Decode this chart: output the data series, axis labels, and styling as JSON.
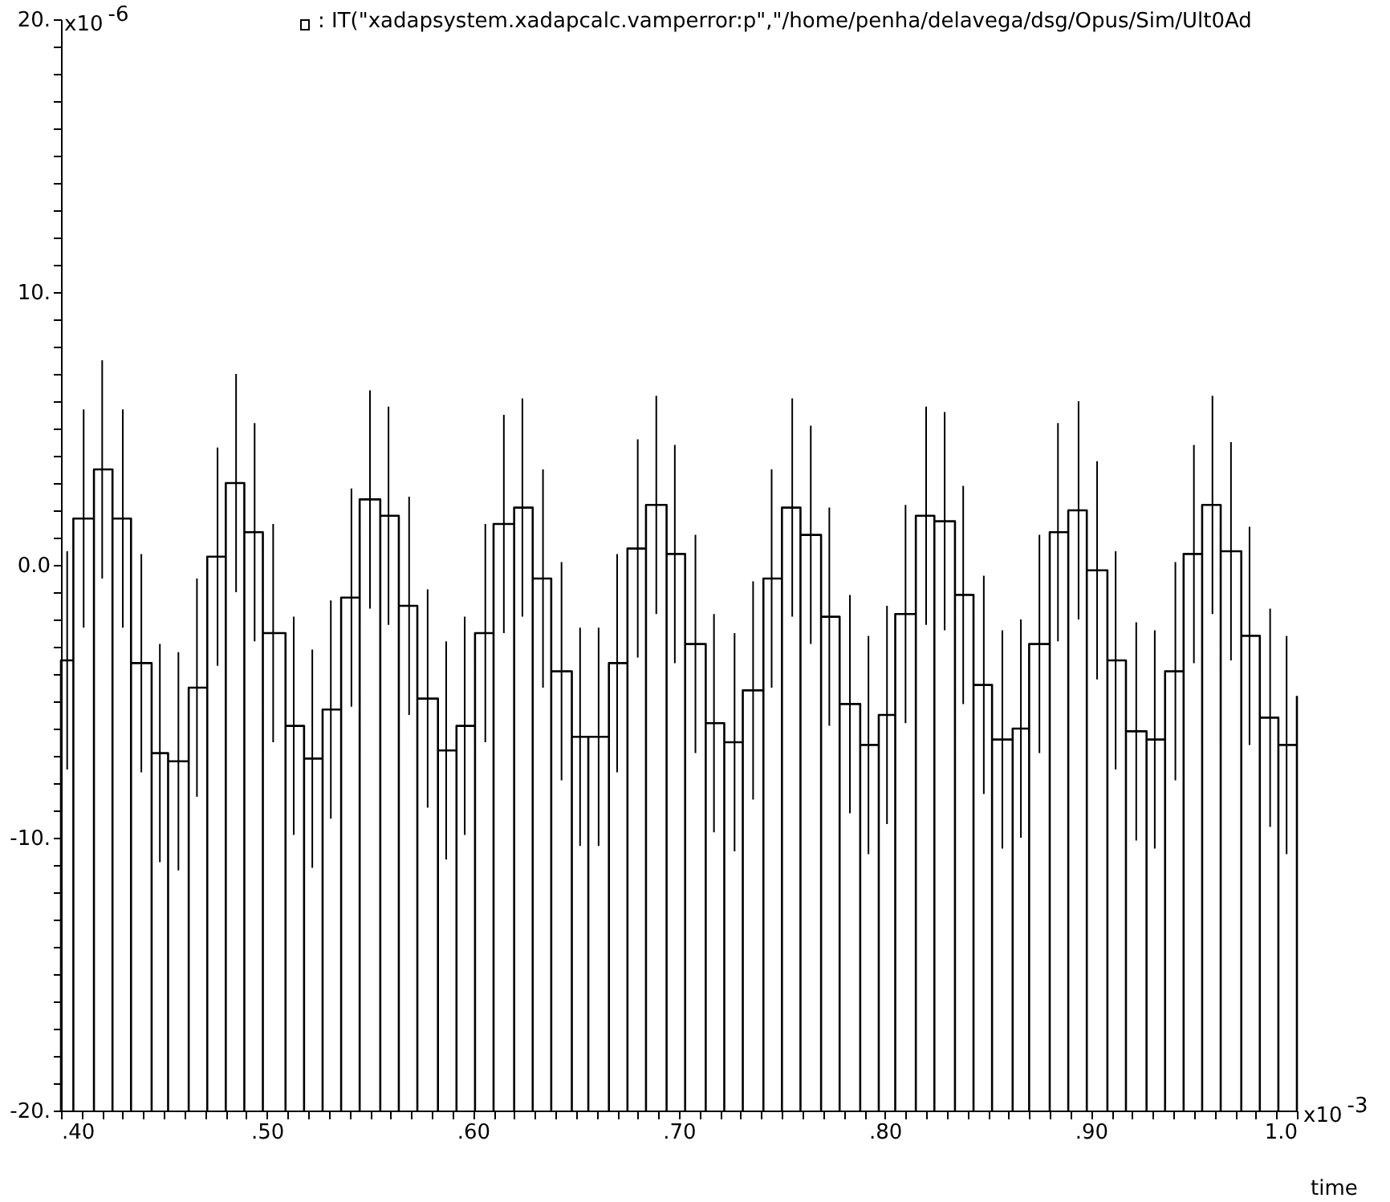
{
  "chart_data": {
    "type": "line",
    "title": ": IT(\"xadapsystem.xadapcalc.vamperror:p\",\"/home/penha/delavega/dsg/Opus/Sim/Ult0Ad",
    "xlabel": "time",
    "annotations": [
      "x10$^{-6}$",
      "x10$^{-3}$"
    ],
    "xlim": [
      0.4,
      1.0
    ],
    "xticks": [
      {
        "value": 0.4,
        "label": ".40"
      },
      {
        "value": 0.41,
        "label": null
      },
      {
        "value": 0.42,
        "label": null
      },
      {
        "value": 0.43,
        "label": null
      },
      {
        "value": 0.44,
        "label": null
      },
      {
        "value": 0.45,
        "label": null
      },
      {
        "value": 0.46,
        "label": null
      },
      {
        "value": 0.47,
        "label": null
      },
      {
        "value": 0.48,
        "label": null
      },
      {
        "value": 0.49,
        "label": null
      },
      {
        "value": 0.5,
        "label": ".50"
      },
      {
        "value": 0.51,
        "label": null
      },
      {
        "value": 0.52,
        "label": null
      },
      {
        "value": 0.53,
        "label": null
      },
      {
        "value": 0.54,
        "label": null
      },
      {
        "value": 0.55,
        "label": null
      },
      {
        "value": 0.56,
        "label": null
      },
      {
        "value": 0.57,
        "label": null
      },
      {
        "value": 0.58,
        "label": null
      },
      {
        "value": 0.59,
        "label": null
      },
      {
        "value": 0.6,
        "label": ".60"
      },
      {
        "value": 0.61,
        "label": null
      },
      {
        "value": 0.62,
        "label": null
      },
      {
        "value": 0.63,
        "label": null
      },
      {
        "value": 0.64,
        "label": null
      },
      {
        "value": 0.65,
        "label": null
      },
      {
        "value": 0.66,
        "label": null
      },
      {
        "value": 0.67,
        "label": null
      },
      {
        "value": 0.68,
        "label": null
      },
      {
        "value": 0.69,
        "label": null
      },
      {
        "value": 0.7,
        "label": ".70"
      },
      {
        "value": 0.71,
        "label": null
      },
      {
        "value": 0.72,
        "label": null
      },
      {
        "value": 0.73,
        "label": null
      },
      {
        "value": 0.74,
        "label": null
      },
      {
        "value": 0.75,
        "label": null
      },
      {
        "value": 0.76,
        "label": null
      },
      {
        "value": 0.77,
        "label": null
      },
      {
        "value": 0.78,
        "label": null
      },
      {
        "value": 0.79,
        "label": null
      },
      {
        "value": 0.8,
        "label": ".80"
      },
      {
        "value": 0.81,
        "label": null
      },
      {
        "value": 0.82,
        "label": null
      },
      {
        "value": 0.83,
        "label": null
      },
      {
        "value": 0.84,
        "label": null
      },
      {
        "value": 0.85,
        "label": null
      },
      {
        "value": 0.86,
        "label": null
      },
      {
        "value": 0.87,
        "label": null
      },
      {
        "value": 0.88,
        "label": null
      },
      {
        "value": 0.89,
        "label": null
      },
      {
        "value": 0.9,
        "label": ".90"
      },
      {
        "value": 0.91,
        "label": null
      },
      {
        "value": 0.92,
        "label": null
      },
      {
        "value": 0.93,
        "label": null
      },
      {
        "value": 0.94,
        "label": null
      },
      {
        "value": 0.95,
        "label": null
      },
      {
        "value": 0.96,
        "label": null
      },
      {
        "value": 0.97,
        "label": null
      },
      {
        "value": 0.98,
        "label": null
      },
      {
        "value": 0.99,
        "label": null
      },
      {
        "value": 1.0,
        "label": "1.0"
      }
    ],
    "ylim": [
      -20,
      20
    ],
    "yticks": [
      {
        "value": -20,
        "label": "-20."
      },
      {
        "value": -19,
        "label": null
      },
      {
        "value": -18,
        "label": null
      },
      {
        "value": -17,
        "label": null
      },
      {
        "value": -16,
        "label": null
      },
      {
        "value": -15,
        "label": null
      },
      {
        "value": -14,
        "label": null
      },
      {
        "value": -13,
        "label": null
      },
      {
        "value": -12,
        "label": null
      },
      {
        "value": -11,
        "label": null
      },
      {
        "value": -10,
        "label": "-10."
      },
      {
        "value": -9,
        "label": null
      },
      {
        "value": -8,
        "label": null
      },
      {
        "value": -7,
        "label": null
      },
      {
        "value": -6,
        "label": null
      },
      {
        "value": -5,
        "label": null
      },
      {
        "value": -4,
        "label": null
      },
      {
        "value": -3,
        "label": null
      },
      {
        "value": -2,
        "label": null
      },
      {
        "value": -1,
        "label": null
      },
      {
        "value": 0,
        "label": "0.0"
      },
      {
        "value": 1,
        "label": null
      },
      {
        "value": 2,
        "label": null
      },
      {
        "value": 3,
        "label": null
      },
      {
        "value": 4,
        "label": null
      },
      {
        "value": 5,
        "label": null
      },
      {
        "value": 6,
        "label": null
      },
      {
        "value": 7,
        "label": null
      },
      {
        "value": 8,
        "label": null
      },
      {
        "value": 9,
        "label": null
      },
      {
        "value": 10,
        "label": "10."
      },
      {
        "value": 11,
        "label": null
      },
      {
        "value": 12,
        "label": null
      },
      {
        "value": 13,
        "label": null
      },
      {
        "value": 14,
        "label": null
      },
      {
        "value": 15,
        "label": null
      },
      {
        "value": 16,
        "label": null
      },
      {
        "value": 17,
        "label": null
      },
      {
        "value": 18,
        "label": null
      },
      {
        "value": 19,
        "label": null
      },
      {
        "value": 20,
        "label": "20."
      }
    ],
    "marker": "none",
    "series": [
      {
        "color": "#000000",
        "x": [
          0.4,
          0.4,
          0.403,
          0.406,
          0.406,
          0.406,
          0.411,
          0.416,
          0.416,
          0.416,
          0.42,
          0.425,
          0.425,
          0.425,
          0.43,
          0.434,
          0.434,
          0.434,
          0.439,
          0.444,
          0.444,
          0.444,
          0.448,
          0.452,
          0.452,
          0.452,
          0.457,
          0.462,
          0.462,
          0.462,
          0.466,
          0.471,
          0.471,
          0.471,
          0.476,
          0.48,
          0.48,
          0.48,
          0.485,
          0.489,
          0.489,
          0.489,
          0.494,
          0.498,
          0.498,
          0.498,
          0.503,
          0.509,
          0.509,
          0.509,
          0.513,
          0.518,
          0.518,
          0.518,
          0.522,
          0.527,
          0.527,
          0.527,
          0.531,
          0.536,
          0.536,
          0.536,
          0.541,
          0.545,
          0.545,
          0.545,
          0.55,
          0.555,
          0.555,
          0.555,
          0.559,
          0.564,
          0.564,
          0.564,
          0.569,
          0.573,
          0.573,
          0.573,
          0.578,
          0.583,
          0.583,
          0.583,
          0.587,
          0.592,
          0.592,
          0.592,
          0.596,
          0.601,
          0.601,
          0.601,
          0.606,
          0.61,
          0.61,
          0.61,
          0.615,
          0.62,
          0.62,
          0.62,
          0.624,
          0.629,
          0.629,
          0.629,
          0.634,
          0.638,
          0.638,
          0.638,
          0.643,
          0.648,
          0.648,
          0.648,
          0.652,
          0.656,
          0.656,
          0.656,
          0.661,
          0.666,
          0.666,
          0.666,
          0.67,
          0.675,
          0.675,
          0.675,
          0.68,
          0.684,
          0.684,
          0.684,
          0.689,
          0.694,
          0.694,
          0.694,
          0.698,
          0.703,
          0.703,
          0.703,
          0.708,
          0.713,
          0.713,
          0.713,
          0.717,
          0.722,
          0.722,
          0.722,
          0.727,
          0.731,
          0.731,
          0.731,
          0.736,
          0.741,
          0.741,
          0.741,
          0.745,
          0.75,
          0.75,
          0.75,
          0.755,
          0.759,
          0.759,
          0.759,
          0.764,
          0.769,
          0.769,
          0.769,
          0.773,
          0.778,
          0.778,
          0.778,
          0.783,
          0.788,
          0.788,
          0.788,
          0.792,
          0.797,
          0.797,
          0.797,
          0.801,
          0.805,
          0.805,
          0.805,
          0.81,
          0.815,
          0.815,
          0.815,
          0.82,
          0.824,
          0.824,
          0.824,
          0.829,
          0.834,
          0.834,
          0.834,
          0.838,
          0.843,
          0.843,
          0.843,
          0.848,
          0.852,
          0.852,
          0.852,
          0.857,
          0.862,
          0.862,
          0.862,
          0.866,
          0.87,
          0.87,
          0.87,
          0.875,
          0.88,
          0.88,
          0.88,
          0.884,
          0.889,
          0.889,
          0.889,
          0.894,
          0.898,
          0.898,
          0.898,
          0.903,
          0.908,
          0.908,
          0.908,
          0.912,
          0.917,
          0.917,
          0.917,
          0.922,
          0.927,
          0.927,
          0.927,
          0.931,
          0.936,
          0.936,
          0.936,
          0.941,
          0.945,
          0.945,
          0.945,
          0.95,
          0.954,
          0.954,
          0.954,
          0.959,
          0.963,
          0.963,
          0.963,
          0.968,
          0.973,
          0.973,
          0.973,
          0.977,
          0.982,
          0.982,
          0.982,
          0.987,
          0.991,
          0.991,
          0.991,
          0.995,
          1.0,
          1.0,
          1.0
        ],
        "values": [
          -20,
          -3.5,
          -3.5,
          -3.5,
          -20,
          1.7,
          1.7,
          1.7,
          -20,
          3.5,
          3.5,
          3.5,
          -20,
          1.7,
          1.7,
          1.7,
          -20,
          -3.6,
          -3.6,
          -3.6,
          -20,
          -6.9,
          -6.9,
          -6.9,
          -20,
          -7.2,
          -7.2,
          -7.2,
          -20,
          -4.5,
          -4.5,
          -4.5,
          -20,
          0.3,
          0.3,
          0.3,
          -20,
          3.0,
          3.0,
          3.0,
          -20,
          1.2,
          1.2,
          1.2,
          -20,
          -2.5,
          -2.5,
          -2.5,
          -20,
          -5.9,
          -5.9,
          -5.9,
          -20,
          -7.1,
          -7.1,
          -7.1,
          -20,
          -5.3,
          -5.3,
          -5.3,
          -20,
          -1.2,
          -1.2,
          -1.2,
          -20,
          2.4,
          2.4,
          2.4,
          -20,
          1.8,
          1.8,
          1.8,
          -20,
          -1.5,
          -1.5,
          -1.5,
          -20,
          -4.9,
          -4.9,
          -4.9,
          -20,
          -6.8,
          -6.8,
          -6.8,
          -20,
          -5.9,
          -5.9,
          -5.9,
          -20,
          -2.5,
          -2.5,
          -2.5,
          -20,
          1.5,
          1.5,
          1.5,
          -20,
          2.1,
          2.1,
          2.1,
          -20,
          -0.5,
          -0.5,
          -0.5,
          -20,
          -3.9,
          -3.9,
          -3.9,
          -20,
          -6.3,
          -6.3,
          -6.3,
          -20,
          -6.3,
          -6.3,
          -6.3,
          -20,
          -3.6,
          -3.6,
          -3.6,
          -20,
          0.6,
          0.6,
          0.6,
          -20,
          2.2,
          2.2,
          2.2,
          -20,
          0.4,
          0.4,
          0.4,
          -20,
          -2.9,
          -2.9,
          -2.9,
          -20,
          -5.8,
          -5.8,
          -5.8,
          -20,
          -6.5,
          -6.5,
          -6.5,
          -20,
          -4.6,
          -4.6,
          -4.6,
          -20,
          -0.5,
          -0.5,
          -0.5,
          -20,
          2.1,
          2.1,
          2.1,
          -20,
          1.1,
          1.1,
          1.1,
          -20,
          -1.9,
          -1.9,
          -1.9,
          -20,
          -5.1,
          -5.1,
          -5.1,
          -20,
          -6.6,
          -6.6,
          -6.6,
          -20,
          -5.5,
          -5.5,
          -5.5,
          -20,
          -1.8,
          -1.8,
          -1.8,
          -20,
          1.8,
          1.8,
          1.8,
          -20,
          1.6,
          1.6,
          1.6,
          -20,
          -1.1,
          -1.1,
          -1.1,
          -20,
          -4.4,
          -4.4,
          -4.4,
          -20,
          -6.4,
          -6.4,
          -6.4,
          -20,
          -6.0,
          -6.0,
          -6.0,
          -20,
          -2.9,
          -2.9,
          -2.9,
          -20,
          1.2,
          1.2,
          1.2,
          -20,
          2.0,
          2.0,
          2.0,
          -20,
          -0.2,
          -0.2,
          -0.2,
          -20,
          -3.5,
          -3.5,
          -3.5,
          -20,
          -6.1,
          -6.1,
          -6.1,
          -20,
          -6.4,
          -6.4,
          -6.4,
          -20,
          -3.9,
          -3.9,
          -3.9,
          -20,
          0.4,
          0.4,
          0.4,
          -20,
          2.2,
          2.2,
          2.2,
          -20,
          0.5,
          0.5,
          0.5,
          -20,
          -2.6,
          -2.6,
          -2.6,
          -20,
          -5.6,
          -5.6,
          -5.6,
          -20,
          -6.6,
          -6.6,
          -6.6,
          -20,
          -4.8
        ],
        "errors": [
          null,
          null,
          4,
          null,
          null,
          null,
          4,
          null,
          null,
          null,
          4,
          null,
          null,
          null,
          4,
          null,
          null,
          null,
          4,
          null,
          null,
          null,
          4,
          null,
          null,
          null,
          4,
          null,
          null,
          null,
          4,
          null,
          null,
          null,
          4,
          null,
          null,
          null,
          4,
          null,
          null,
          null,
          4,
          null,
          null,
          null,
          4,
          null,
          null,
          null,
          4,
          null,
          null,
          null,
          4,
          null,
          null,
          null,
          4,
          null,
          null,
          null,
          4,
          null,
          null,
          null,
          4,
          null,
          null,
          null,
          4,
          null,
          null,
          null,
          4,
          null,
          null,
          null,
          4,
          null,
          null,
          null,
          4,
          null,
          null,
          null,
          4,
          null,
          null,
          null,
          4,
          null,
          null,
          null,
          4,
          null,
          null,
          null,
          4,
          null,
          null,
          null,
          4,
          null,
          null,
          null,
          4,
          null,
          null,
          null,
          4,
          null,
          null,
          null,
          4,
          null,
          null,
          null,
          4,
          null,
          null,
          null,
          4,
          null,
          null,
          null,
          4,
          null,
          null,
          null,
          4,
          null,
          null,
          null,
          4,
          null,
          null,
          null,
          4,
          null,
          null,
          null,
          4,
          null,
          null,
          null,
          4,
          null,
          null,
          null,
          4,
          null,
          null,
          null,
          4,
          null,
          null,
          null,
          4,
          null,
          null,
          null,
          4,
          null,
          null,
          null,
          4,
          null,
          null,
          null,
          4,
          null,
          null,
          null,
          4,
          null,
          null,
          null,
          4,
          null,
          null,
          null,
          4,
          null,
          null,
          null,
          4,
          null,
          null,
          null,
          4,
          null,
          null,
          null,
          4,
          null,
          null,
          null,
          4,
          null,
          null,
          null,
          4,
          null,
          null,
          null,
          4,
          null,
          null,
          null,
          4,
          null,
          null,
          null,
          4,
          null,
          null,
          null,
          4,
          null,
          null,
          null,
          4,
          null,
          null,
          null,
          4,
          null,
          null,
          null,
          4,
          null,
          null,
          null,
          4,
          null,
          null,
          null,
          4,
          null,
          null,
          null,
          4,
          null,
          null,
          null,
          4,
          null,
          null,
          null,
          4,
          null,
          null,
          null,
          4,
          null,
          null,
          null,
          4,
          null,
          null,
          null
        ]
      }
    ]
  }
}
